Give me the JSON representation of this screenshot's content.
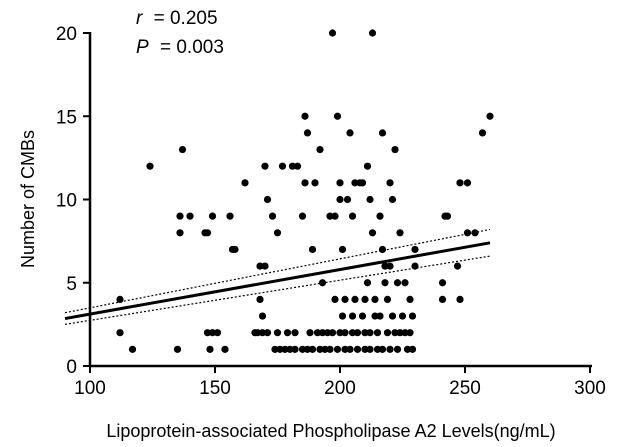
{
  "chart_data": {
    "type": "scatter",
    "title": "",
    "xlabel": "Lipoprotein-associated Phospholipase A2 Levels(ng/mL)",
    "ylabel": "Number of CMBs",
    "xlim": [
      100,
      300
    ],
    "ylim": [
      0,
      20
    ],
    "x_ticks": [
      100,
      150,
      200,
      250,
      300
    ],
    "y_ticks": [
      0,
      5,
      10,
      15,
      20
    ],
    "grid": false,
    "annotations": {
      "r_symbol": "r",
      "r_value": "= 0.205",
      "p_symbol": "P",
      "p_value": "= 0.003"
    },
    "regression": {
      "x": [
        90,
        260
      ],
      "y": [
        2.85,
        7.4
      ]
    },
    "confidence_upper": {
      "x": [
        90,
        260
      ],
      "y": [
        3.2,
        8.2
      ]
    },
    "confidence_lower": {
      "x": [
        90,
        260
      ],
      "y": [
        2.5,
        6.6
      ]
    },
    "colors": {
      "points": "#000000",
      "line": "#000000"
    },
    "points": [
      [
        112,
        4
      ],
      [
        112,
        2
      ],
      [
        117,
        1
      ],
      [
        124,
        12
      ],
      [
        135,
        1
      ],
      [
        136,
        9
      ],
      [
        136,
        8
      ],
      [
        137,
        13
      ],
      [
        140,
        9
      ],
      [
        146,
        8
      ],
      [
        147,
        8
      ],
      [
        147,
        2
      ],
      [
        148,
        1
      ],
      [
        149,
        9
      ],
      [
        149,
        2
      ],
      [
        151,
        2
      ],
      [
        154,
        1
      ],
      [
        156,
        9
      ],
      [
        157,
        7
      ],
      [
        158,
        7
      ],
      [
        162,
        11
      ],
      [
        166,
        2
      ],
      [
        167,
        2
      ],
      [
        168,
        6
      ],
      [
        168,
        4
      ],
      [
        169,
        3
      ],
      [
        169,
        2
      ],
      [
        170,
        6
      ],
      [
        170,
        12
      ],
      [
        171,
        10
      ],
      [
        171,
        2
      ],
      [
        173,
        9
      ],
      [
        174,
        1
      ],
      [
        175,
        8
      ],
      [
        175,
        2
      ],
      [
        176,
        1
      ],
      [
        177,
        12
      ],
      [
        178,
        1
      ],
      [
        179,
        2
      ],
      [
        180,
        1
      ],
      [
        181,
        12
      ],
      [
        182,
        1
      ],
      [
        182,
        2
      ],
      [
        183,
        12
      ],
      [
        185,
        1
      ],
      [
        185,
        9
      ],
      [
        186,
        15
      ],
      [
        186,
        11
      ],
      [
        187,
        1
      ],
      [
        187,
        14
      ],
      [
        188,
        2
      ],
      [
        189,
        1
      ],
      [
        189,
        7
      ],
      [
        190,
        11
      ],
      [
        191,
        2
      ],
      [
        192,
        1
      ],
      [
        192,
        13
      ],
      [
        193,
        2
      ],
      [
        193,
        5
      ],
      [
        194,
        1
      ],
      [
        195,
        2
      ],
      [
        196,
        9
      ],
      [
        196,
        1
      ],
      [
        197,
        20
      ],
      [
        197,
        2
      ],
      [
        198,
        9
      ],
      [
        198,
        4
      ],
      [
        199,
        1
      ],
      [
        199,
        15
      ],
      [
        200,
        2
      ],
      [
        200,
        11
      ],
      [
        200,
        10
      ],
      [
        201,
        3
      ],
      [
        201,
        7
      ],
      [
        202,
        1
      ],
      [
        202,
        2
      ],
      [
        202,
        4
      ],
      [
        203,
        10
      ],
      [
        204,
        1
      ],
      [
        204,
        14
      ],
      [
        205,
        2
      ],
      [
        205,
        9
      ],
      [
        205,
        3
      ],
      [
        206,
        11
      ],
      [
        206,
        4
      ],
      [
        207,
        1
      ],
      [
        207,
        2
      ],
      [
        208,
        11
      ],
      [
        209,
        11
      ],
      [
        209,
        3
      ],
      [
        210,
        1
      ],
      [
        210,
        2
      ],
      [
        210,
        4
      ],
      [
        211,
        5
      ],
      [
        211,
        12
      ],
      [
        212,
        10
      ],
      [
        212,
        2
      ],
      [
        212,
        1
      ],
      [
        213,
        8
      ],
      [
        213,
        20
      ],
      [
        214,
        4
      ],
      [
        214,
        3
      ],
      [
        215,
        1
      ],
      [
        215,
        2
      ],
      [
        216,
        3
      ],
      [
        216,
        9
      ],
      [
        217,
        1
      ],
      [
        217,
        14
      ],
      [
        217,
        7
      ],
      [
        218,
        6
      ],
      [
        218,
        5
      ],
      [
        219,
        2
      ],
      [
        219,
        4
      ],
      [
        220,
        1
      ],
      [
        220,
        11
      ],
      [
        220,
        6
      ],
      [
        221,
        3
      ],
      [
        221,
        10
      ],
      [
        222,
        2
      ],
      [
        222,
        13
      ],
      [
        223,
        5
      ],
      [
        223,
        1
      ],
      [
        224,
        8
      ],
      [
        224,
        2
      ],
      [
        225,
        3
      ],
      [
        226,
        5
      ],
      [
        226,
        2
      ],
      [
        227,
        1
      ],
      [
        228,
        4
      ],
      [
        228,
        2
      ],
      [
        229,
        1
      ],
      [
        229,
        3
      ],
      [
        230,
        6
      ],
      [
        230,
        7
      ],
      [
        241,
        5
      ],
      [
        241,
        4
      ],
      [
        242,
        9
      ],
      [
        243,
        9
      ],
      [
        247,
        6
      ],
      [
        248,
        11
      ],
      [
        248,
        4
      ],
      [
        251,
        11
      ],
      [
        251,
        8
      ],
      [
        254,
        8
      ],
      [
        257,
        14
      ],
      [
        260,
        15
      ]
    ]
  }
}
